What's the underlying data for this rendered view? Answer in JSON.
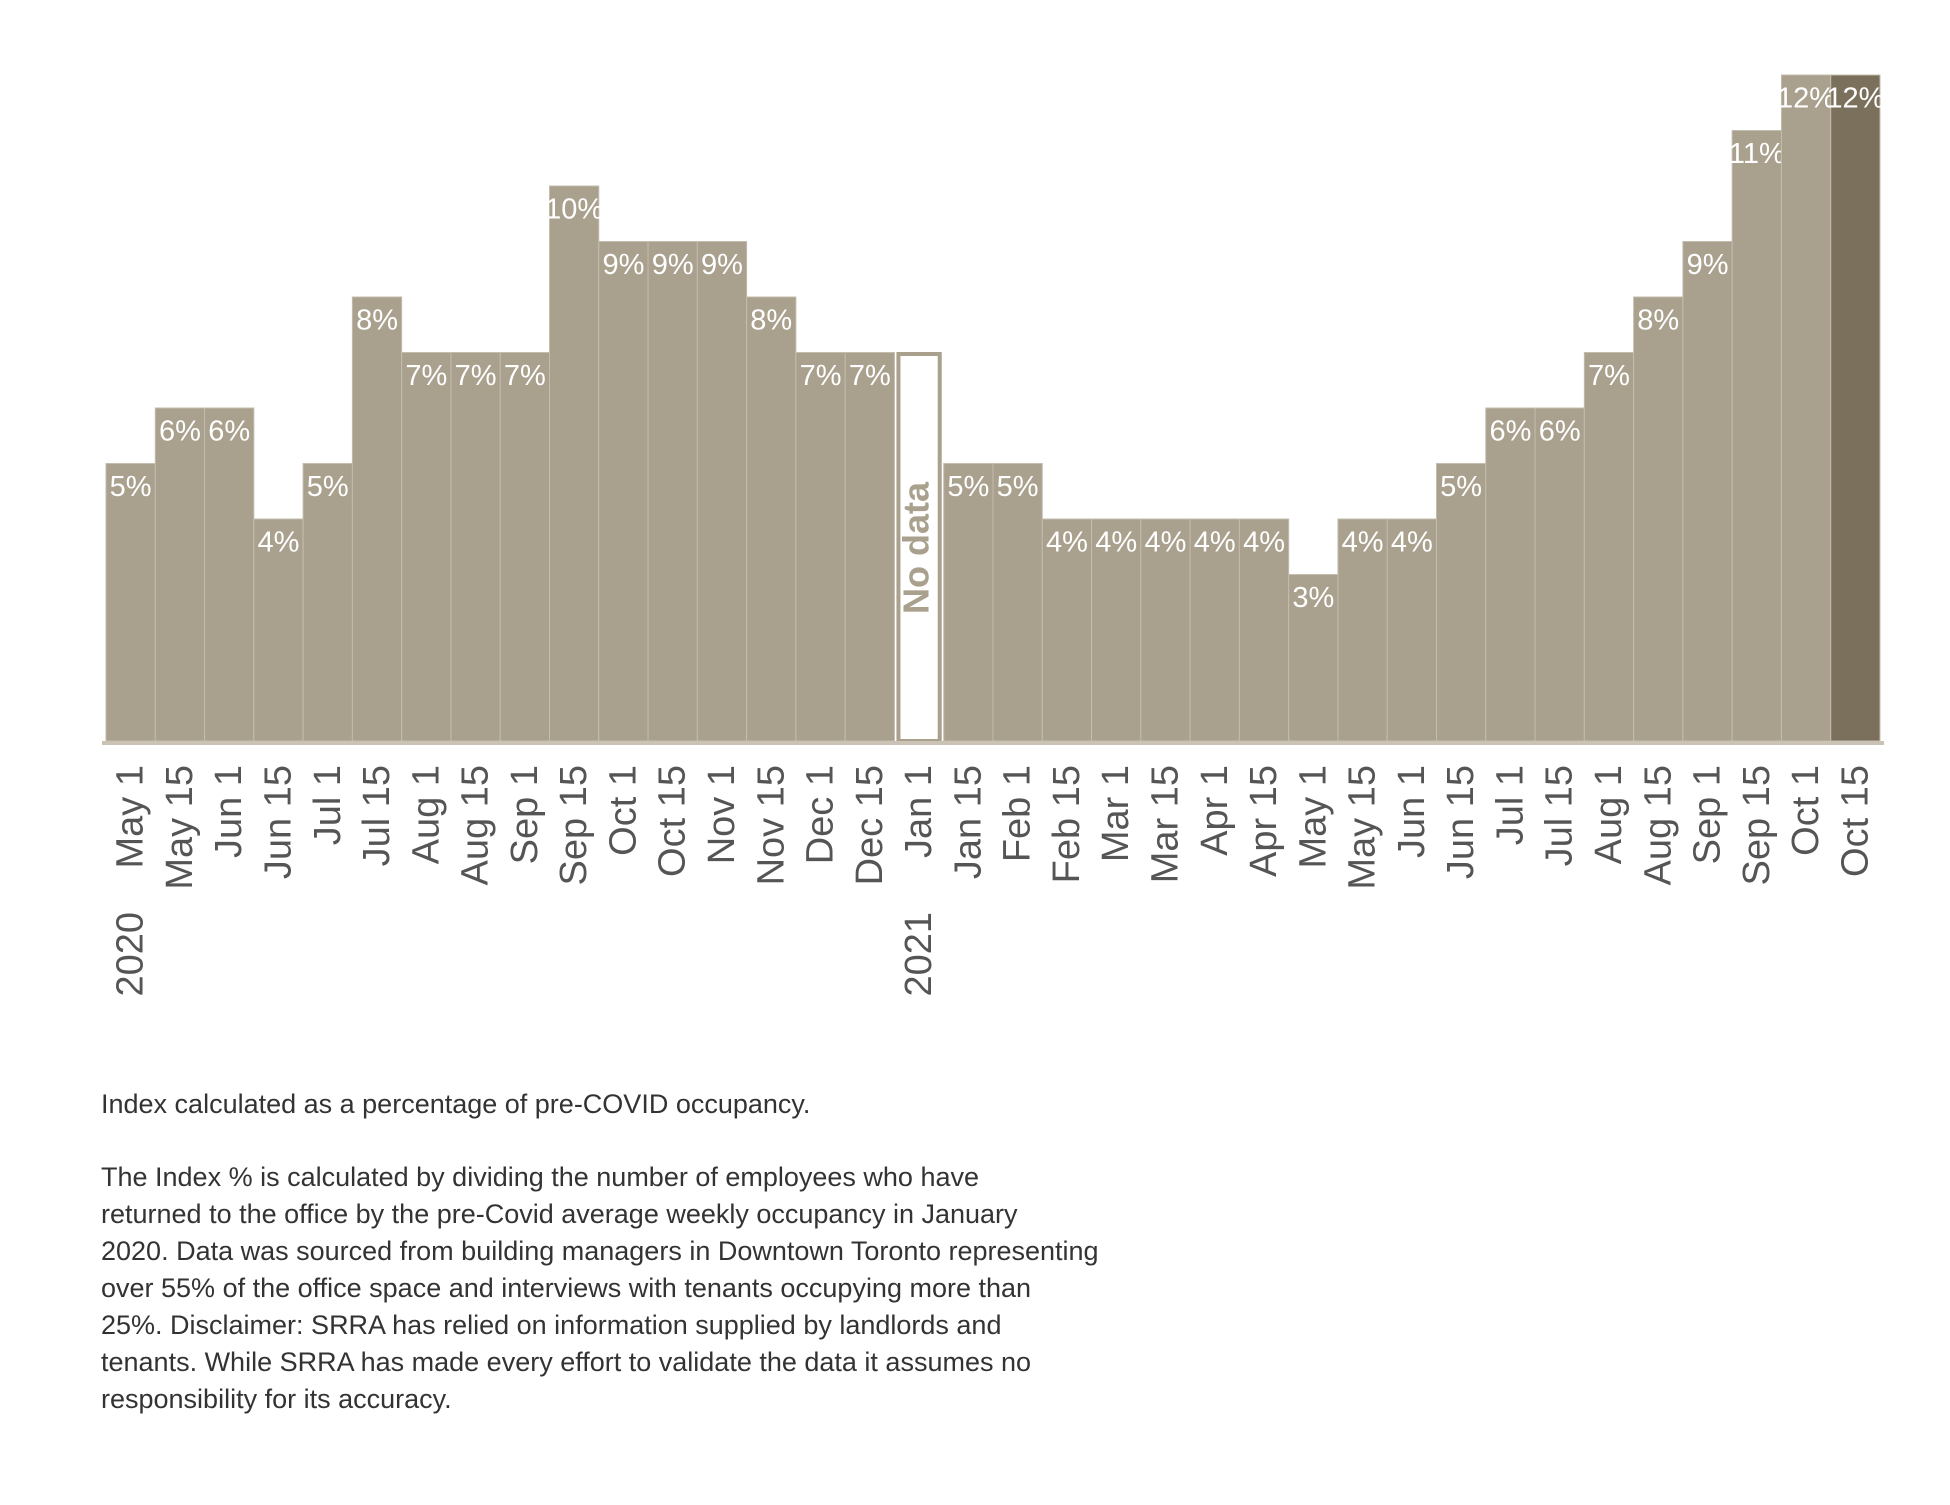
{
  "chart_data": {
    "type": "bar",
    "categories": [
      "May 1",
      "May 15",
      "Jun 1",
      "Jun 15",
      "Jul 1",
      "Jul 15",
      "Aug 1",
      "Aug 15",
      "Sep 1",
      "Sep 15",
      "Oct 1",
      "Oct 15",
      "Nov 1",
      "Nov 15",
      "Dec 1",
      "Dec 15",
      "Jan 1",
      "Jan 15",
      "Feb 1",
      "Feb 15",
      "Mar 1",
      "Mar 15",
      "Apr 1",
      "Apr 15",
      "May 1",
      "May 15",
      "Jun 1",
      "Jun 15",
      "Jul 1",
      "Jul 15",
      "Aug 1",
      "Aug 15",
      "Sep 1",
      "Sep 15",
      "Oct 1",
      "Oct 15"
    ],
    "years": [
      "2020",
      null,
      null,
      null,
      null,
      null,
      null,
      null,
      null,
      null,
      null,
      null,
      null,
      null,
      null,
      null,
      "2021",
      null,
      null,
      null,
      null,
      null,
      null,
      null,
      null,
      null,
      null,
      null,
      null,
      null,
      null,
      null,
      null,
      null,
      null,
      null
    ],
    "values": [
      5,
      6,
      6,
      4,
      5,
      8,
      7,
      7,
      7,
      10,
      9,
      9,
      9,
      8,
      7,
      7,
      null,
      5,
      5,
      4,
      4,
      4,
      4,
      4,
      3,
      4,
      4,
      5,
      6,
      6,
      7,
      8,
      9,
      11,
      12,
      12
    ],
    "value_labels": [
      "5%",
      "6%",
      "6%",
      "4%",
      "5%",
      "8%",
      "7%",
      "7%",
      "7%",
      "10%",
      "9%",
      "9%",
      "9%",
      "8%",
      "7%",
      "7%",
      null,
      "5%",
      "5%",
      "4%",
      "4%",
      "4%",
      "4%",
      "4%",
      "3%",
      "4%",
      "4%",
      "5%",
      "6%",
      "6%",
      "7%",
      "8%",
      "9%",
      "11%",
      "12%",
      "12%"
    ],
    "color": "#a9a08d",
    "highlight_color": "#7b705b",
    "no_data_label": "No data",
    "ylim": [
      0,
      12
    ]
  },
  "notes": {
    "summary": "Index calculated as a percentage of pre-COVID occupancy.",
    "description_lines": [
      "The Index % is calculated by dividing the number of employees who have",
      "returned to the office by the pre-Covid average weekly occupancy in January",
      "2020. Data was sourced from building managers in Downtown Toronto representing",
      "over 55% of the office space and interviews with tenants occupying more than",
      "25%. Disclaimer: SRRA has relied on information supplied by landlords and",
      "tenants. While SRRA has made every effort to validate the data it assumes no",
      "responsibility for its accuracy."
    ]
  }
}
